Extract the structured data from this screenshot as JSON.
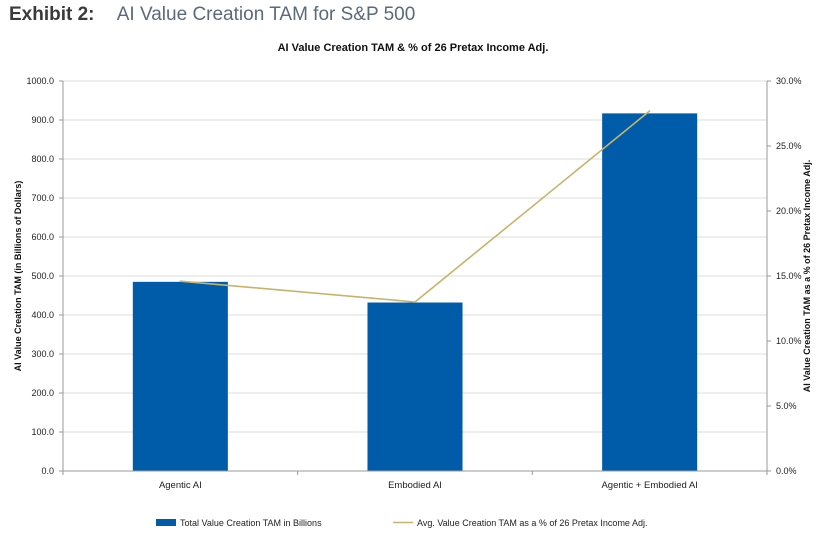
{
  "header": {
    "label": "Exhibit 2:",
    "title": "AI Value Creation TAM for S&P 500"
  },
  "chart_data": {
    "type": "bar",
    "title": "AI Value Creation TAM & % of 26 Pretax Income Adj.",
    "categories": [
      "Agentic AI",
      "Embodied AI",
      "Agentic + Embodied AI"
    ],
    "series": [
      {
        "name": "Total Value Creation TAM in Billions",
        "type": "bar",
        "axis": "left",
        "color": "#005ca9",
        "values": [
          485,
          432,
          917
        ]
      },
      {
        "name": "Avg. Value Creation TAM as a % of 26 Pretax Income Adj.",
        "type": "line",
        "axis": "right",
        "color": "#c9b36a",
        "values": [
          14.6,
          13.0,
          27.7
        ]
      }
    ],
    "ylabel": "AI Value Creation TAM (in Billions of Dollars)",
    "y2label": "AI Value Creation TAM as a % of 26 Pretax Income Adj.",
    "ylim": [
      0,
      1000
    ],
    "y2lim": [
      0,
      30
    ],
    "yticks": [
      "0.0",
      "100.0",
      "200.0",
      "300.0",
      "400.0",
      "500.0",
      "600.0",
      "700.0",
      "800.0",
      "900.0",
      "1000.0"
    ],
    "y2ticks": [
      "0.0%",
      "5.0%",
      "10.0%",
      "15.0%",
      "20.0%",
      "25.0%",
      "30.0%"
    ],
    "grid": true,
    "legend": "bottom"
  }
}
